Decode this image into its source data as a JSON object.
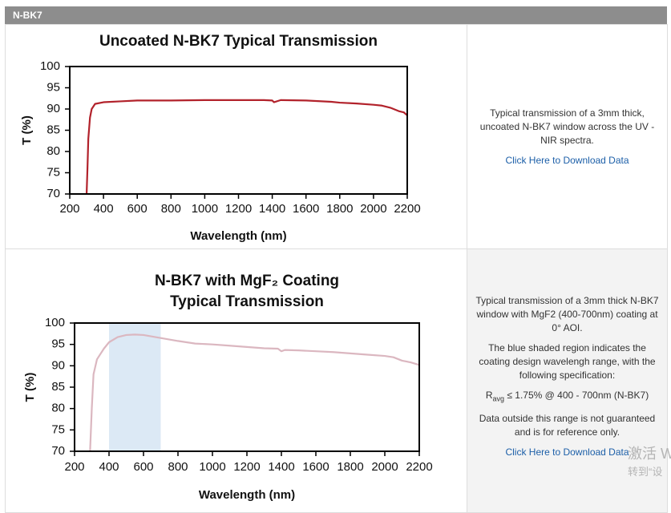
{
  "header": {
    "title": "N-BK7"
  },
  "chart_data": [
    {
      "type": "line",
      "title": [
        "Uncoated N-BK7 Typical Transmission"
      ],
      "x_label": "Wavelength (nm)",
      "y_label": "T (%)",
      "x": [
        300,
        305,
        310,
        320,
        330,
        350,
        400,
        500,
        600,
        800,
        1000,
        1200,
        1350,
        1400,
        1410,
        1450,
        1600,
        1750,
        1800,
        1900,
        2000,
        2050,
        2100,
        2150,
        2180,
        2200
      ],
      "values": [
        70,
        76,
        83,
        88,
        90,
        91.2,
        91.6,
        91.8,
        92,
        92,
        92.1,
        92.1,
        92.1,
        92,
        91.6,
        92.1,
        92,
        91.7,
        91.5,
        91.3,
        91,
        90.8,
        90.3,
        89.5,
        89.2,
        88.5
      ],
      "color": "#b2222b",
      "xlim": [
        200,
        2200
      ],
      "ylim": [
        70,
        100
      ],
      "xticks": [
        200,
        400,
        600,
        800,
        1000,
        1200,
        1400,
        1600,
        1800,
        2000,
        2200
      ],
      "yticks": [
        70,
        75,
        80,
        85,
        90,
        95,
        100
      ]
    },
    {
      "type": "line",
      "title": [
        "N-BK7 with MgF₂ Coating",
        "Typical Transmission"
      ],
      "x_label": "Wavelength (nm)",
      "y_label": "T (%)",
      "x": [
        290,
        300,
        310,
        330,
        370,
        400,
        450,
        500,
        550,
        600,
        700,
        800,
        900,
        1000,
        1100,
        1200,
        1300,
        1380,
        1400,
        1420,
        1500,
        1600,
        1700,
        1800,
        1900,
        2000,
        2050,
        2100,
        2150,
        2200
      ],
      "values": [
        70,
        80,
        88,
        91.5,
        94,
        95.5,
        96.7,
        97.2,
        97.3,
        97.2,
        96.5,
        95.8,
        95.2,
        95,
        94.7,
        94.4,
        94.1,
        94,
        93.4,
        93.7,
        93.6,
        93.4,
        93.2,
        92.9,
        92.6,
        92.3,
        92,
        91.2,
        90.8,
        90.2
      ],
      "color": "#dbb7c0",
      "shaded_range": [
        400,
        700
      ],
      "shade_color": "#dce9f5",
      "xlim": [
        200,
        2200
      ],
      "ylim": [
        70,
        100
      ],
      "xticks": [
        200,
        400,
        600,
        800,
        1000,
        1200,
        1400,
        1600,
        1800,
        2000,
        2200
      ],
      "yticks": [
        70,
        75,
        80,
        85,
        90,
        95,
        100
      ]
    }
  ],
  "rows": [
    {
      "description": "Typical transmission of a 3mm thick, uncoated N-BK7 window across the UV - NIR spectra.",
      "link": "Click Here to Download Data"
    },
    {
      "description": "Typical transmission of a 3mm thick N-BK7 window with MgF2 (400-700nm) coating at 0° AOI.",
      "note": "The blue shaded region indicates the coating design wavelengh range, with the following specification:",
      "spec": {
        "symbol": "R",
        "subscript": "avg",
        "text": "≤ 1.75% @ 400 - 700nm (N-BK7)"
      },
      "disclaimer": "Data outside this range is not guaranteed and is for reference only.",
      "link": "Click Here to Download Data"
    }
  ],
  "watermark": [
    "激活 W",
    "转到“设"
  ]
}
